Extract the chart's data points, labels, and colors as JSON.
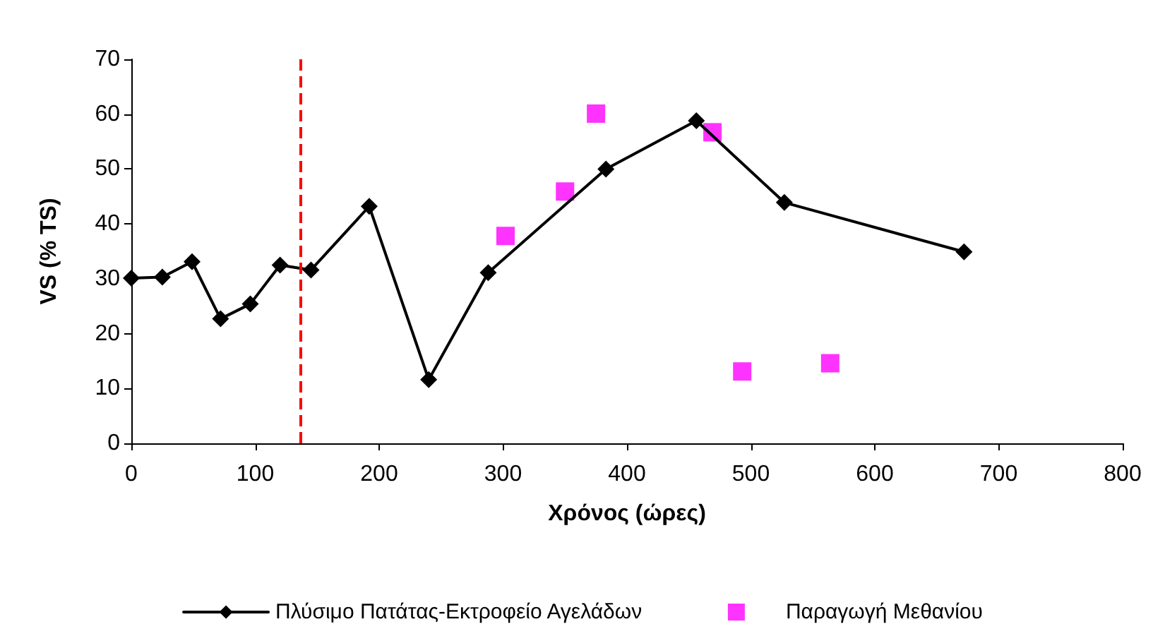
{
  "chart_data": {
    "type": "line",
    "xlabel": "Χρόνος (ώρες)",
    "ylabel": "VS (% TS)",
    "xlim": [
      0,
      800
    ],
    "xticks": [
      0,
      100,
      200,
      300,
      400,
      500,
      600,
      700,
      800
    ],
    "ylim": [
      0,
      70
    ],
    "yticks": [
      0,
      10,
      20,
      30,
      40,
      50,
      60,
      70
    ],
    "grid": false,
    "legend": "bottom",
    "marker": "diamond",
    "line_style": "solid",
    "series": [
      {
        "name": "Πλύσιμο Πατάτας-Εκτροφείο Αγελάδων",
        "color": "#000000",
        "x": [
          0,
          25,
          49,
          72,
          96,
          120,
          145,
          192,
          240,
          288,
          383,
          456,
          527,
          672
        ],
        "values": [
          30.1,
          30.3,
          33.1,
          22.7,
          25.4,
          32.5,
          31.6,
          43.2,
          11.6,
          31.1,
          50.0,
          58.8,
          43.9,
          34.9
        ]
      },
      {
        "name": "Παραγωγή Μεθανίου",
        "color": "#ff00ff",
        "type": "scatter",
        "marker": "square",
        "x": [
          302,
          350,
          375,
          469,
          493,
          564
        ],
        "values": [
          37.8,
          45.9,
          60.1,
          56.7,
          13.1,
          14.6
        ]
      }
    ],
    "ref_lines": [
      {
        "axis": "x",
        "value": 136,
        "label": null,
        "color": "#ff0000",
        "line_style": "dashed"
      }
    ]
  }
}
